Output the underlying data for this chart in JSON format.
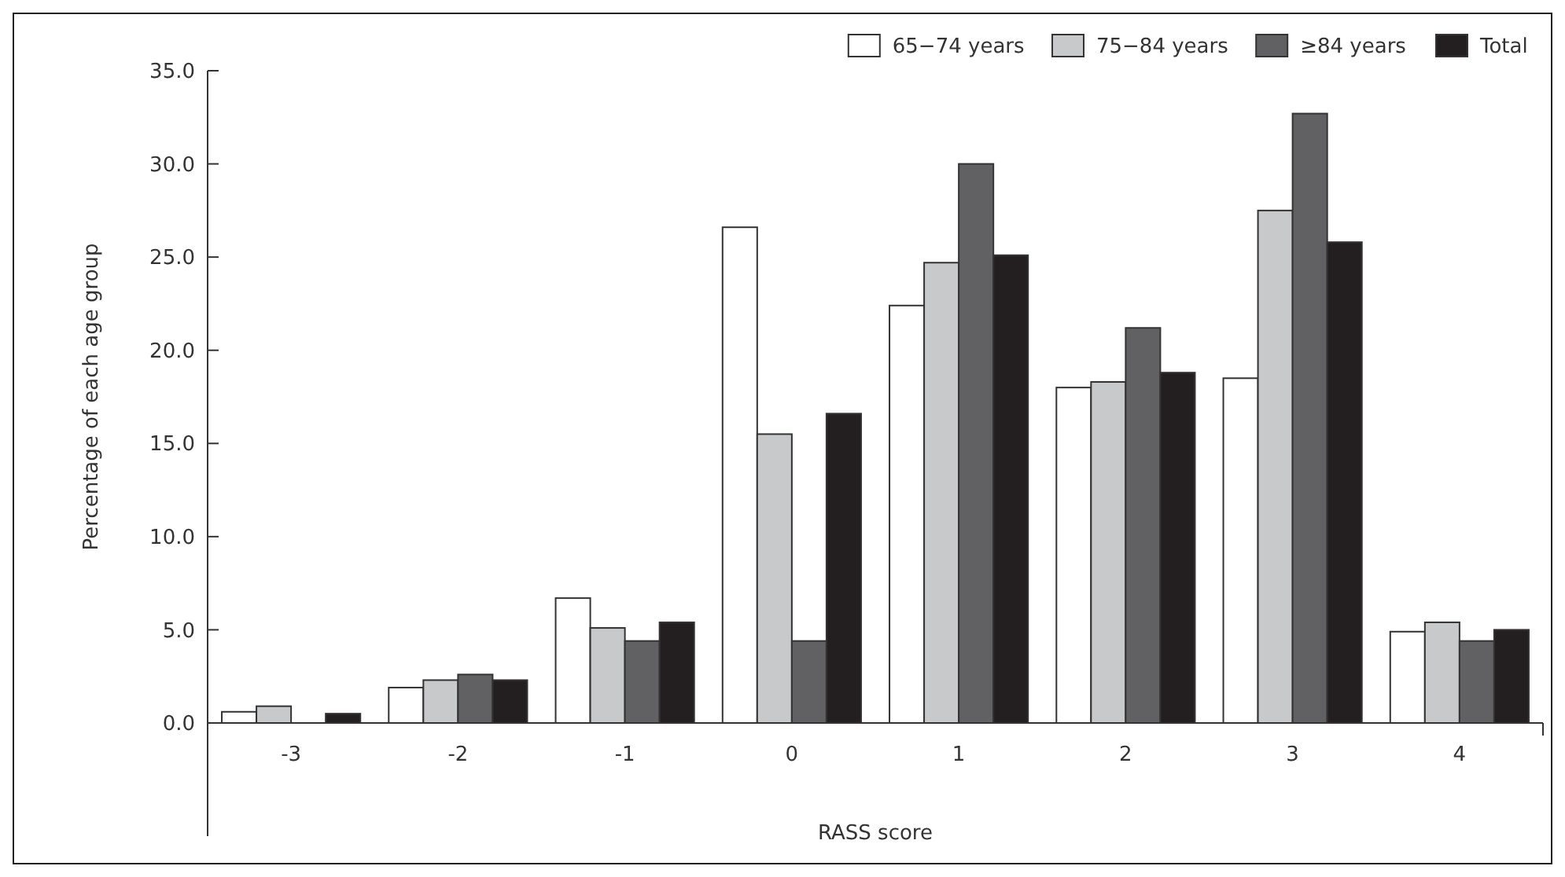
{
  "chart_data": {
    "type": "bar",
    "xlabel": "RASS score",
    "ylabel": "Percentage of each age group",
    "categories": [
      "-3",
      "-2",
      "-1",
      "0",
      "1",
      "2",
      "3",
      "4"
    ],
    "series": [
      {
        "name": "65−74 years",
        "color": "#ffffff",
        "values": [
          0.6,
          1.9,
          6.7,
          26.6,
          22.4,
          18.0,
          18.5,
          4.9
        ]
      },
      {
        "name": "75−84 years",
        "color": "#c8c9cb",
        "values": [
          0.9,
          2.3,
          5.1,
          15.5,
          24.7,
          18.3,
          27.5,
          5.4
        ]
      },
      {
        "name": "≥84 years",
        "color": "#616163",
        "values": [
          0,
          2.6,
          4.4,
          4.4,
          30.0,
          21.2,
          32.7,
          4.4
        ]
      },
      {
        "name": "Total",
        "color": "#231f20",
        "values": [
          0.5,
          2.3,
          5.4,
          16.6,
          25.1,
          18.8,
          25.8,
          5.0
        ]
      }
    ],
    "ylim": [
      0,
      35
    ],
    "yticks": [
      {
        "value": 0,
        "label": "0.0"
      },
      {
        "value": 5,
        "label": "5.0"
      },
      {
        "value": 10,
        "label": "10.0"
      },
      {
        "value": 15,
        "label": "15.0"
      },
      {
        "value": 20,
        "label": "20.0"
      },
      {
        "value": 25,
        "label": "25.0"
      },
      {
        "value": 30,
        "label": "30.0"
      },
      {
        "value": 35,
        "label": "35.0"
      }
    ],
    "grid": false,
    "legend": "top right"
  }
}
